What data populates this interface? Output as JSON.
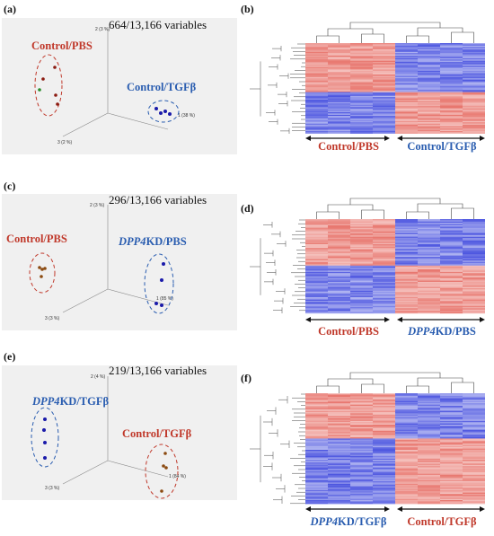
{
  "panels": [
    {
      "id": "a",
      "label": "(a)",
      "variables": "664/13,166 variables",
      "axes": {
        "x": "1 (38 %)",
        "y": "2 (3 %)",
        "z": "3 (2 %)"
      },
      "group1": {
        "italic": "",
        "rest": "Control/PBS",
        "color": "#c0392b"
      },
      "group2": {
        "italic": "",
        "rest": "Control/TGFβ",
        "color": "#2a5db0"
      }
    },
    {
      "id": "c",
      "label": "(c)",
      "variables": "296/13,166 variables",
      "axes": {
        "x": "1 (85 %)",
        "y": "2 (3 %)",
        "z": "3 (3 %)"
      },
      "group1": {
        "italic": "",
        "rest": "Control/PBS",
        "color": "#c0392b"
      },
      "group2": {
        "italic": "DPP4",
        "rest": "KD/PBS",
        "color": "#2a5db0"
      }
    },
    {
      "id": "e",
      "label": "(e)",
      "variables": "219/13,166 variables",
      "axes": {
        "x": "1 (84 %)",
        "y": "2 (4 %)",
        "z": "3 (3 %)"
      },
      "group1": {
        "italic": "DPP4",
        "rest": "KD/TGFβ",
        "color": "#2a5db0"
      },
      "group2": {
        "italic": "",
        "rest": "Control/TGFβ",
        "color": "#c0392b"
      }
    }
  ],
  "heatmaps": [
    {
      "id": "b",
      "label": "(b)",
      "left": {
        "italic": "",
        "rest": "Control/PBS",
        "color": "#c0392b"
      },
      "right": {
        "italic": "",
        "rest": "Control/TGFβ",
        "color": "#2a5db0"
      }
    },
    {
      "id": "d",
      "label": "(d)",
      "left": {
        "italic": "",
        "rest": "Control/PBS",
        "color": "#c0392b"
      },
      "right": {
        "italic": "DPP4",
        "rest": "KD/PBS",
        "color": "#2a5db0"
      }
    },
    {
      "id": "f",
      "label": "(f)",
      "left": {
        "italic": "DPP4",
        "rest": "KD/TGFβ",
        "color": "#2a5db0"
      },
      "right": {
        "italic": "",
        "rest": "Control/TGFβ",
        "color": "#c0392b"
      }
    }
  ],
  "colors": {
    "red": "#e8776f",
    "blue": "#4e57e0",
    "light": "#f3c8c8",
    "bg": "#f0f0f0"
  }
}
